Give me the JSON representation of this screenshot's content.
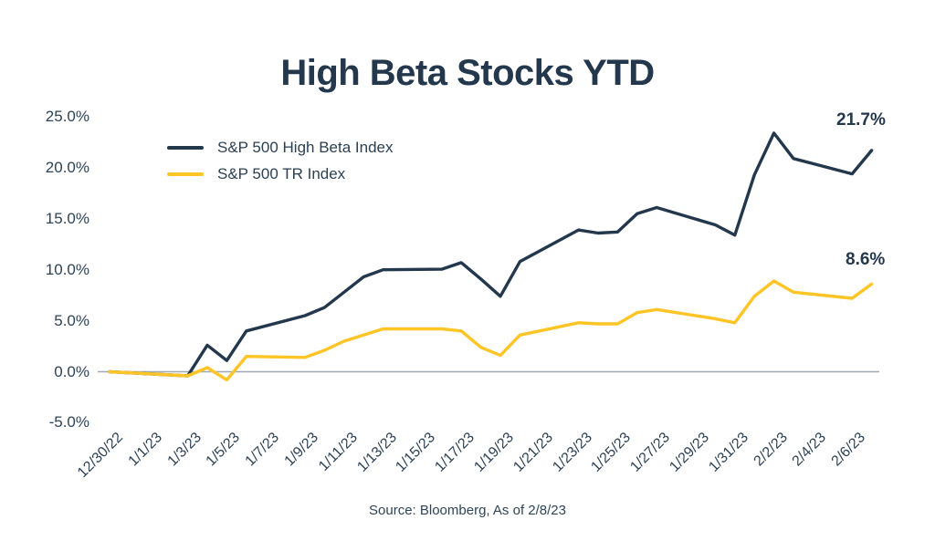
{
  "title": "High Beta Stocks YTD",
  "source_note": "Source: Bloomberg, As of 2/8/23",
  "colors": {
    "navy": "#24384D",
    "yellow": "#FFC425",
    "zero_line": "#9FA8B2",
    "background": "#FFFFFF"
  },
  "legend": [
    {
      "label": "S&P 500 High Beta Index",
      "color": "#24384D"
    },
    {
      "label": "S&P 500 TR Index",
      "color": "#FFC425"
    }
  ],
  "chart_data": {
    "type": "line",
    "title": "High Beta Stocks YTD",
    "xlabel": "",
    "ylabel": "",
    "ylim": [
      -5,
      25
    ],
    "grid": false,
    "legend_position": "top-left-inside",
    "x": [
      "12/30/22",
      "1/3/23",
      "1/4/23",
      "1/5/23",
      "1/6/23",
      "1/9/23",
      "1/10/23",
      "1/11/23",
      "1/12/23",
      "1/13/23",
      "1/16/23",
      "1/17/23",
      "1/18/23",
      "1/19/23",
      "1/20/23",
      "1/23/23",
      "1/24/23",
      "1/25/23",
      "1/26/23",
      "1/27/23",
      "1/30/23",
      "1/31/23",
      "2/1/23",
      "2/2/23",
      "2/3/23",
      "2/6/23",
      "2/7/23"
    ],
    "day_offsets": [
      0,
      4,
      5,
      6,
      7,
      10,
      11,
      12,
      13,
      14,
      17,
      18,
      19,
      20,
      21,
      24,
      25,
      26,
      27,
      28,
      31,
      32,
      33,
      34,
      35,
      38,
      39
    ],
    "series": [
      {
        "name": "S&P 500 High Beta Index",
        "color": "#24384D",
        "end_label": "21.7%",
        "values": [
          0,
          -0.4,
          2.6,
          1.1,
          4.0,
          5.5,
          6.3,
          7.8,
          9.3,
          10.0,
          10.05,
          10.7,
          9.1,
          7.4,
          10.8,
          13.9,
          13.6,
          13.7,
          15.5,
          16.1,
          14.4,
          13.4,
          19.3,
          23.4,
          20.9,
          19.4,
          21.7
        ]
      },
      {
        "name": "S&P 500 TR Index",
        "color": "#FFC425",
        "end_label": "8.6%",
        "values": [
          0,
          -0.4,
          0.4,
          -0.8,
          1.5,
          1.4,
          2.1,
          3.0,
          3.6,
          4.2,
          4.2,
          4.0,
          2.4,
          1.6,
          3.6,
          4.8,
          4.7,
          4.7,
          5.8,
          6.1,
          5.2,
          4.8,
          7.4,
          8.9,
          7.8,
          7.2,
          8.6
        ]
      }
    ],
    "y_ticks": [
      {
        "label": "25.0%",
        "value": 25
      },
      {
        "label": "20.0%",
        "value": 20
      },
      {
        "label": "15.0%",
        "value": 15
      },
      {
        "label": "10.0%",
        "value": 10
      },
      {
        "label": "5.0%",
        "value": 5
      },
      {
        "label": "0.0%",
        "value": 0
      },
      {
        "label": "-5.0%",
        "value": -5
      }
    ],
    "x_ticks": [
      {
        "label": "12/30/22",
        "day": 0
      },
      {
        "label": "1/1/23",
        "day": 2
      },
      {
        "label": "1/3/23",
        "day": 4
      },
      {
        "label": "1/5/23",
        "day": 6
      },
      {
        "label": "1/7/23",
        "day": 8
      },
      {
        "label": "1/9/23",
        "day": 10
      },
      {
        "label": "1/11/23",
        "day": 12
      },
      {
        "label": "1/13/23",
        "day": 14
      },
      {
        "label": "1/15/23",
        "day": 16
      },
      {
        "label": "1/17/23",
        "day": 18
      },
      {
        "label": "1/19/23",
        "day": 20
      },
      {
        "label": "1/21/23",
        "day": 22
      },
      {
        "label": "1/23/23",
        "day": 24
      },
      {
        "label": "1/25/23",
        "day": 26
      },
      {
        "label": "1/27/23",
        "day": 28
      },
      {
        "label": "1/29/23",
        "day": 30
      },
      {
        "label": "1/31/23",
        "day": 32
      },
      {
        "label": "2/2/23",
        "day": 34
      },
      {
        "label": "2/4/23",
        "day": 36
      },
      {
        "label": "2/6/23",
        "day": 38
      }
    ]
  }
}
